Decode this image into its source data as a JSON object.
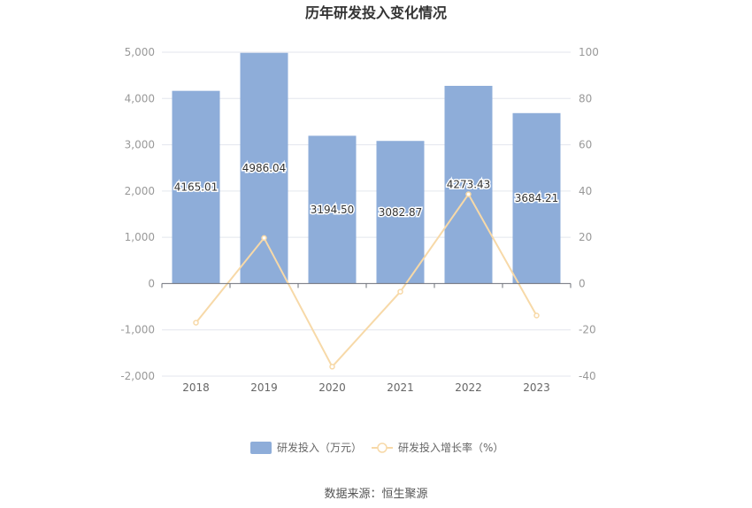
{
  "chart_data": {
    "type": "bar",
    "title": "历年研发投入变化情况",
    "categories": [
      "2018",
      "2019",
      "2020",
      "2021",
      "2022",
      "2023"
    ],
    "series": [
      {
        "name": "研发投入（万元）",
        "type": "bar",
        "axis": "left",
        "values": [
          4165.01,
          4986.04,
          3194.5,
          3082.87,
          4273.43,
          3684.21
        ],
        "labels": [
          "4165.01",
          "4986.04",
          "3194.50",
          "3082.87",
          "4273.43",
          "3684.21"
        ],
        "color": "#8eadd9"
      },
      {
        "name": "研发投入增长率（%）",
        "type": "line",
        "axis": "right",
        "values": [
          -16.9,
          19.7,
          -35.9,
          -3.5,
          38.6,
          -13.8
        ],
        "color": "#f7d9a8"
      }
    ],
    "yleft": {
      "min": -2000,
      "max": 5000,
      "ticks": [
        -2000,
        -1000,
        0,
        1000,
        2000,
        3000,
        4000,
        5000
      ],
      "tick_labels": [
        "-2,000",
        "-1,000",
        "0",
        "1,000",
        "2,000",
        "3,000",
        "4,000",
        "5,000"
      ]
    },
    "yright": {
      "min": -40,
      "max": 100,
      "ticks": [
        -40,
        -20,
        0,
        20,
        40,
        60,
        80,
        100
      ],
      "tick_labels": [
        "-40",
        "-20",
        "0",
        "20",
        "40",
        "60",
        "80",
        "100"
      ]
    },
    "grid": true,
    "legend_position": "bottom"
  },
  "source_text": "数据来源：恒生聚源"
}
